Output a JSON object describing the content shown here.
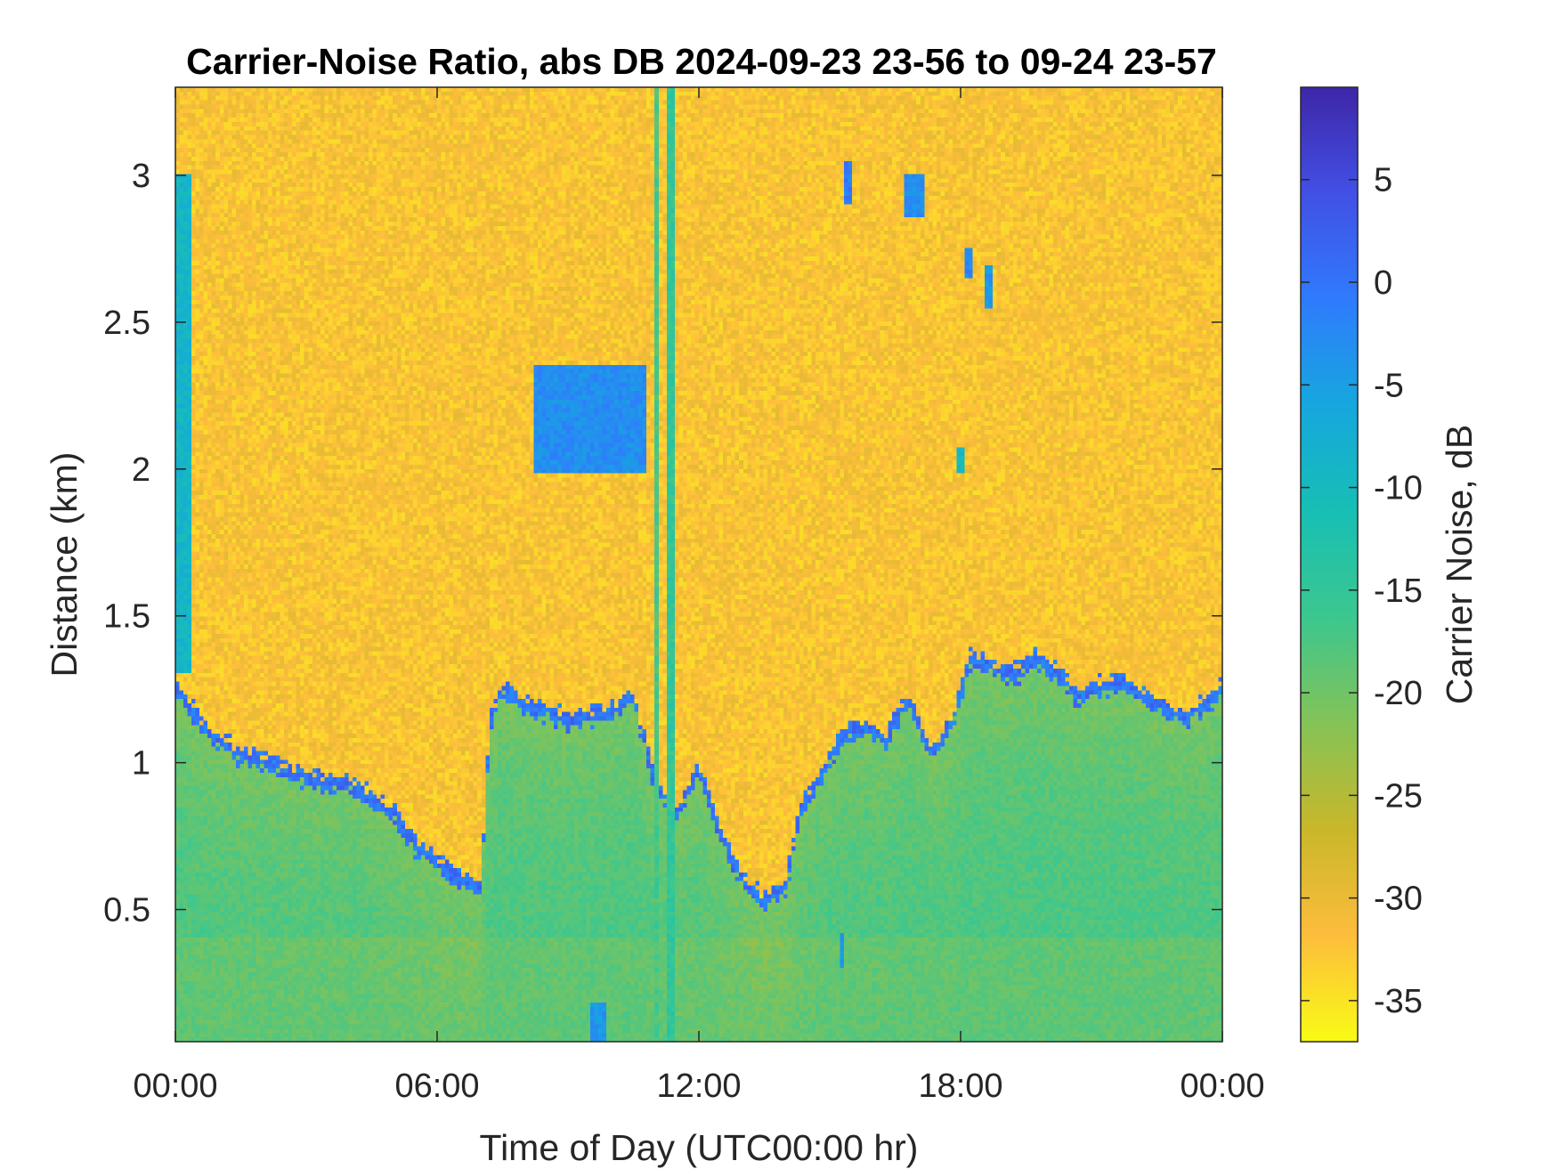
{
  "chart_data": {
    "type": "heatmap",
    "title": "Carrier-Noise Ratio, abs DB 2024-09-23 23-56 to 09-24 23-57",
    "xlabel": "Time of Day (UTC00:00 hr)",
    "ylabel": "Distance (km)",
    "colorbar_label": "Carrier Noise, dB",
    "x_unit": "hours",
    "xlim": [
      0,
      24
    ],
    "ylim": [
      0.05,
      3.3
    ],
    "clim": [
      -37,
      9.5
    ],
    "x_ticks": [
      0,
      6,
      12,
      18,
      24
    ],
    "x_tick_labels": [
      "00:00",
      "06:00",
      "12:00",
      "18:00",
      "00:00"
    ],
    "y_ticks": [
      0.5,
      1,
      1.5,
      2,
      2.5,
      3
    ],
    "y_tick_labels": [
      "0.5",
      "1",
      "1.5",
      "2",
      "2.5",
      "3"
    ],
    "colorbar_ticks": [
      -35,
      -30,
      -25,
      -20,
      -15,
      -10,
      -5,
      0,
      5
    ],
    "colorbar_tick_labels": [
      "-35",
      "-30",
      "-25",
      "-20",
      "-15",
      "-10",
      "-5",
      "0",
      "5"
    ],
    "colormap": "parula",
    "colormap_stops": [
      "#3e26a8",
      "#4250e5",
      "#2f7bfd",
      "#16a7de",
      "#17bfb4",
      "#3cc78f",
      "#85c357",
      "#c9b72a",
      "#fdbd3c",
      "#f9fb15"
    ],
    "background_level_db": -32,
    "background_noise_db": 2.5,
    "boundary_layer_top": {
      "description_units": "time in hours, top height in km",
      "points": [
        [
          0.0,
          1.28
        ],
        [
          0.3,
          1.22
        ],
        [
          0.6,
          1.15
        ],
        [
          1.0,
          1.1
        ],
        [
          1.5,
          1.05
        ],
        [
          2.0,
          1.03
        ],
        [
          2.5,
          1.0
        ],
        [
          3.0,
          0.97
        ],
        [
          3.5,
          0.96
        ],
        [
          4.0,
          0.95
        ],
        [
          4.5,
          0.9
        ],
        [
          5.0,
          0.85
        ],
        [
          5.5,
          0.74
        ],
        [
          6.0,
          0.68
        ],
        [
          6.5,
          0.63
        ],
        [
          7.0,
          0.6
        ],
        [
          7.2,
          1.15
        ],
        [
          7.5,
          1.28
        ],
        [
          8.0,
          1.22
        ],
        [
          8.5,
          1.2
        ],
        [
          9.0,
          1.17
        ],
        [
          9.5,
          1.18
        ],
        [
          10.0,
          1.2
        ],
        [
          10.5,
          1.25
        ],
        [
          11.0,
          0.95
        ],
        [
          11.5,
          0.85
        ],
        [
          12.0,
          1.0
        ],
        [
          12.5,
          0.78
        ],
        [
          13.0,
          0.62
        ],
        [
          13.5,
          0.55
        ],
        [
          14.0,
          0.6
        ],
        [
          14.3,
          0.85
        ],
        [
          14.8,
          0.98
        ],
        [
          15.3,
          1.12
        ],
        [
          15.8,
          1.15
        ],
        [
          16.3,
          1.1
        ],
        [
          16.8,
          1.25
        ],
        [
          17.3,
          1.05
        ],
        [
          17.8,
          1.15
        ],
        [
          18.2,
          1.38
        ],
        [
          18.7,
          1.35
        ],
        [
          19.2,
          1.32
        ],
        [
          19.7,
          1.38
        ],
        [
          20.2,
          1.33
        ],
        [
          20.7,
          1.25
        ],
        [
          21.2,
          1.28
        ],
        [
          21.7,
          1.3
        ],
        [
          22.2,
          1.25
        ],
        [
          22.7,
          1.2
        ],
        [
          23.2,
          1.18
        ],
        [
          23.6,
          1.22
        ],
        [
          24.0,
          1.28
        ]
      ],
      "edge_level_db": 0,
      "interior_level_db": -17
    },
    "features": [
      {
        "kind": "patch",
        "x": [
          8.2,
          10.8
        ],
        "y": [
          1.98,
          2.35
        ],
        "level_db": -3
      },
      {
        "kind": "column",
        "x": [
          10.95,
          11.1
        ],
        "y": [
          0.05,
          3.3
        ],
        "level_db": -17
      },
      {
        "kind": "column",
        "x": [
          11.25,
          11.4
        ],
        "y": [
          0.05,
          3.3
        ],
        "level_db": -15
      },
      {
        "kind": "column",
        "x": [
          0.0,
          0.35
        ],
        "y": [
          1.3,
          3.0
        ],
        "level_db": -9
      },
      {
        "kind": "streak",
        "x": [
          15.35,
          15.5
        ],
        "y": [
          2.9,
          3.05
        ],
        "level_db": -1
      },
      {
        "kind": "streak",
        "x": [
          16.75,
          17.15
        ],
        "y": [
          2.85,
          3.0
        ],
        "level_db": -3
      },
      {
        "kind": "streak",
        "x": [
          18.1,
          18.3
        ],
        "y": [
          2.65,
          2.75
        ],
        "level_db": -2
      },
      {
        "kind": "streak",
        "x": [
          18.6,
          18.75
        ],
        "y": [
          2.55,
          2.7
        ],
        "level_db": -4
      },
      {
        "kind": "streak",
        "x": [
          17.95,
          18.1
        ],
        "y": [
          1.98,
          2.07
        ],
        "level_db": -10
      },
      {
        "kind": "streak",
        "x": [
          9.55,
          9.85
        ],
        "y": [
          0.05,
          0.18
        ],
        "level_db": -4
      },
      {
        "kind": "streak",
        "x": [
          15.2,
          15.3
        ],
        "y": [
          0.3,
          0.42
        ],
        "level_db": -5
      }
    ]
  }
}
